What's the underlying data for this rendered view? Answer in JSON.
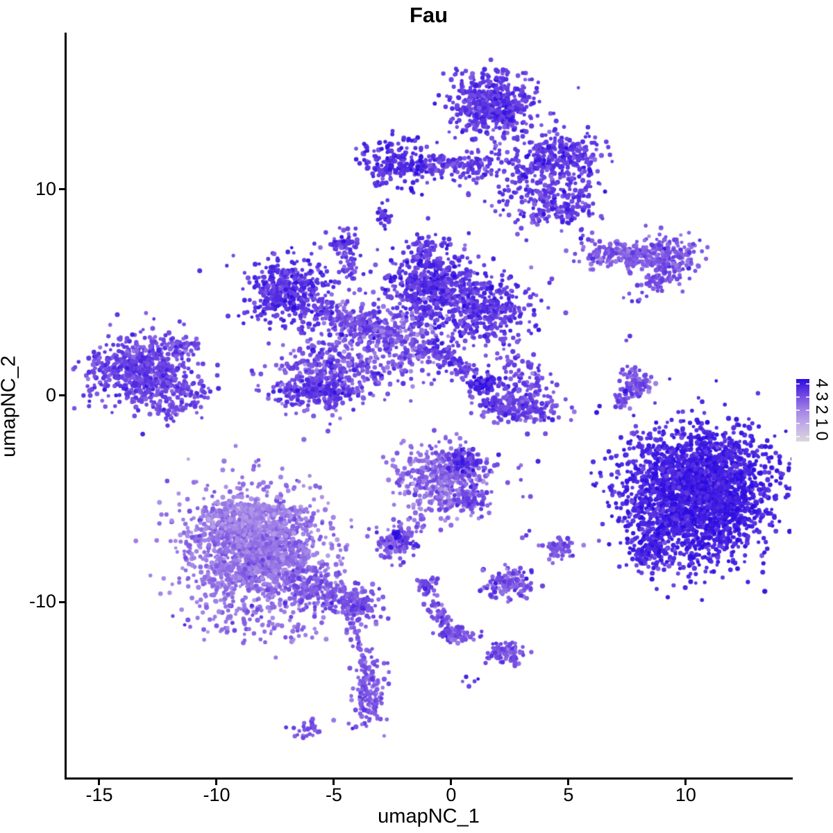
{
  "chart_data": {
    "type": "scatter",
    "title": "Fau",
    "xlabel": "umapNC_1",
    "ylabel": "umapNC_2",
    "xlim": [
      -16.42,
      14.5
    ],
    "ylim": [
      -18.51,
      17.6
    ],
    "grid": false,
    "x_ticks": [
      {
        "v": -15,
        "label": "-15"
      },
      {
        "v": -10,
        "label": "-10"
      },
      {
        "v": -5,
        "label": "-5"
      },
      {
        "v": 0,
        "label": "0"
      },
      {
        "v": 5,
        "label": "5"
      },
      {
        "v": 10,
        "label": "10"
      }
    ],
    "y_ticks": [
      {
        "v": 10,
        "label": "10"
      },
      {
        "v": 0,
        "label": "0"
      },
      {
        "v": -10,
        "label": "-10"
      }
    ],
    "colorbar": {
      "tick_labels": [
        "4",
        "3",
        "2",
        "1",
        "0"
      ],
      "stops_low_to_high": [
        "#d9d6d9",
        "#c3b0e8",
        "#a284e6",
        "#6f45e2",
        "#2c0ce0"
      ],
      "position": "right"
    },
    "point_style": {
      "radius_min": 2.4,
      "radius_max": 3.7,
      "alpha": 0.95
    },
    "clusters": [
      {
        "c": "top-main-head",
        "t": "g",
        "x": 1.78,
        "y": 14.13,
        "sx": 0.85,
        "sy": 0.75,
        "n": 550,
        "e": 3.3
      },
      {
        "c": "top-main-bridge",
        "t": "g",
        "x": 2.51,
        "y": 10.94,
        "sx": 1.15,
        "sy": 0.95,
        "n": 130,
        "e": 3.2
      },
      {
        "c": "top-main-right-wing",
        "t": "g",
        "x": 4.59,
        "y": 11.61,
        "sx": 0.85,
        "sy": 0.55,
        "n": 260,
        "e": 3.3
      },
      {
        "c": "top-main-lower-arm",
        "t": "g",
        "x": 4.44,
        "y": 9.42,
        "sx": 0.95,
        "sy": 0.62,
        "n": 230,
        "e": 3.2
      },
      {
        "c": "top-left-arm",
        "t": "s",
        "x1": -1.48,
        "y1": 11.1,
        "x2": 1.48,
        "y2": 11.27,
        "w": 0.28,
        "n": 130,
        "e": 3.2
      },
      {
        "c": "top-left-blob",
        "t": "g",
        "x": -2.31,
        "y": 11.27,
        "sx": 0.72,
        "sy": 0.58,
        "n": 200,
        "e": 3.5
      },
      {
        "c": "top-left-small",
        "t": "g",
        "x": -2.81,
        "y": 8.68,
        "sx": 0.18,
        "sy": 0.28,
        "n": 22,
        "e": 3.4
      },
      {
        "c": "top-strays",
        "t": "g",
        "x": 5.47,
        "y": 7.57,
        "sx": 0.38,
        "sy": 0.38,
        "n": 6,
        "e": 3.0
      },
      {
        "c": "mid-upper-left",
        "t": "g",
        "x": -6.86,
        "y": 5.05,
        "sx": 0.8,
        "sy": 0.8,
        "n": 430,
        "e": 3.4
      },
      {
        "c": "mid-ul-arm",
        "t": "s",
        "x1": -5.77,
        "y1": 4.21,
        "x2": -3.11,
        "y2": 3.03,
        "w": 0.35,
        "n": 170,
        "e": 3.0
      },
      {
        "c": "mid-top-blob",
        "t": "g",
        "x": -0.83,
        "y": 5.45,
        "sx": 0.95,
        "sy": 0.9,
        "n": 520,
        "e": 3.4
      },
      {
        "c": "mid-top-tip",
        "t": "s",
        "x1": -1.33,
        "y1": 7.74,
        "x2": -1.04,
        "y2": 6.56,
        "w": 0.22,
        "n": 35,
        "e": 3.2
      },
      {
        "c": "mid-right-limb",
        "t": "g",
        "x": 1.48,
        "y": 4.1,
        "sx": 0.95,
        "sy": 0.72,
        "n": 380,
        "e": 3.3
      },
      {
        "c": "mid-center",
        "t": "g",
        "x": -2.51,
        "y": 2.69,
        "sx": 1.05,
        "sy": 0.88,
        "n": 370,
        "e": 2.8,
        "es": 0.5
      },
      {
        "c": "mid-lower-left",
        "t": "g",
        "x": -5.38,
        "y": 0.94,
        "sx": 1.15,
        "sy": 0.82,
        "n": 430,
        "e": 2.9,
        "es": 0.45
      },
      {
        "c": "mid-ll-dark-edge",
        "t": "g",
        "x": -5.77,
        "y": 0.17,
        "sx": 0.85,
        "sy": 0.28,
        "n": 140,
        "e": 3.3
      },
      {
        "c": "mid-lr-strand",
        "t": "s",
        "x1": -1.04,
        "y1": 2.52,
        "x2": 1.48,
        "y2": 0.44,
        "w": 0.28,
        "n": 130,
        "e": 3.2
      },
      {
        "c": "mid-lr-tip",
        "t": "g",
        "x": 1.39,
        "y": 0.57,
        "sx": 0.22,
        "sy": 0.18,
        "n": 45,
        "e": 3.9
      },
      {
        "c": "mid-small-top-blob",
        "t": "g",
        "x": -4.59,
        "y": 7.4,
        "sx": 0.32,
        "sy": 0.28,
        "n": 55,
        "e": 3.3
      },
      {
        "c": "mid-top-link",
        "t": "s",
        "x1": -4.44,
        "y1": 6.9,
        "x2": -4.29,
        "y2": 5.55,
        "w": 0.2,
        "n": 30,
        "e": 3.1
      },
      {
        "c": "mid-halo",
        "t": "g",
        "x": -2.66,
        "y": 3.7,
        "sx": 2.1,
        "sy": 1.55,
        "n": 70,
        "e": 2.9
      },
      {
        "c": "left-main",
        "t": "g",
        "x": -13.17,
        "y": 1.28,
        "sx": 1.05,
        "sy": 0.82,
        "n": 640,
        "e": 3.1
      },
      {
        "c": "left-point",
        "t": "s",
        "x1": -11.69,
        "y1": 0.34,
        "x2": -10.71,
        "y2": 0.0,
        "w": 0.3,
        "n": 60,
        "e": 3.0
      },
      {
        "c": "left-top-arm",
        "t": "s",
        "x1": -11.83,
        "y1": 2.52,
        "x2": -10.89,
        "y2": 2.36,
        "w": 0.22,
        "n": 40,
        "e": 2.9
      },
      {
        "c": "left-tail",
        "t": "g",
        "x": -11.83,
        "y": -0.67,
        "sx": 0.45,
        "sy": 0.32,
        "n": 55,
        "e": 3.0
      },
      {
        "c": "topright-band",
        "t": "g",
        "x": 7.54,
        "y": 6.8,
        "sx": 1.05,
        "sy": 0.32,
        "n": 210,
        "e": 2.7
      },
      {
        "c": "topright-wing",
        "t": "g",
        "x": 9.17,
        "y": 6.66,
        "sx": 0.75,
        "sy": 0.6,
        "n": 190,
        "e": 2.8
      },
      {
        "c": "topright-strand",
        "t": "s",
        "x1": 8.28,
        "y1": 5.21,
        "x2": 9.32,
        "y2": 5.89,
        "w": 0.2,
        "n": 30,
        "e": 3.0
      },
      {
        "c": "topright-dots",
        "t": "g",
        "x": 7.75,
        "y": 4.61,
        "sx": 0.28,
        "sy": 0.22,
        "n": 5,
        "e": 3.2
      },
      {
        "c": "right-strand-1",
        "t": "s",
        "x1": 7.75,
        "y1": 1.35,
        "x2": 7.25,
        "y2": -0.5,
        "w": 0.22,
        "n": 55,
        "e": 2.9
      },
      {
        "c": "right-strand-2",
        "t": "s",
        "x1": 8.14,
        "y1": 1.01,
        "x2": 7.93,
        "y2": 0.0,
        "w": 0.18,
        "n": 35,
        "e": 2.9
      },
      {
        "c": "right-strand-piece",
        "t": "g",
        "x": 8.22,
        "y": 0.5,
        "sx": 0.22,
        "sy": 0.28,
        "n": 25,
        "e": 2.8
      },
      {
        "c": "right-strand-dots",
        "t": "g",
        "x": 7.75,
        "y": -2.19,
        "sx": 0.28,
        "sy": 0.38,
        "n": 6,
        "e": 3.1
      },
      {
        "c": "bottomright-main",
        "t": "g",
        "x": 10.65,
        "y": -4.71,
        "sx": 1.5,
        "sy": 1.55,
        "n": 2400,
        "e": 3.7,
        "es": 0.28
      },
      {
        "c": "bottomright-halo-ul",
        "t": "g",
        "x": 8.43,
        "y": -2.86,
        "sx": 0.65,
        "sy": 0.65,
        "n": 45,
        "e": 3.4
      },
      {
        "c": "bottomright-halo-l",
        "t": "g",
        "x": 7.99,
        "y": -5.38,
        "sx": 0.45,
        "sy": 0.75,
        "n": 35,
        "e": 3.4
      },
      {
        "c": "bottomright-bl-lobe",
        "t": "g",
        "x": 8.58,
        "y": -7.4,
        "sx": 0.55,
        "sy": 0.5,
        "n": 130,
        "e": 3.6
      },
      {
        "c": "center-bottom-main",
        "t": "g",
        "x": -0.38,
        "y": -3.97,
        "sx": 0.9,
        "sy": 0.82,
        "n": 500,
        "e": 2.5,
        "es": 0.42
      },
      {
        "c": "center-bottom-dark-patch",
        "t": "g",
        "x": 0.53,
        "y": -3.1,
        "sx": 0.33,
        "sy": 0.28,
        "n": 85,
        "e": 3.5
      },
      {
        "c": "center-bottom-edge",
        "t": "g",
        "x": 0.89,
        "y": -4.88,
        "sx": 0.4,
        "sy": 0.33,
        "n": 65,
        "e": 3.0
      },
      {
        "c": "center-bottom-tail",
        "t": "s",
        "x1": -1.18,
        "y1": -5.72,
        "x2": -2.31,
        "y2": -7.47,
        "w": 0.2,
        "n": 35,
        "e": 2.8
      },
      {
        "c": "center-tail-blob",
        "t": "g",
        "x": -2.37,
        "y": -7.07,
        "sx": 0.42,
        "sy": 0.4,
        "n": 110,
        "e": 2.8,
        "es": 0.5
      },
      {
        "c": "center-tail-dark-dot",
        "t": "g",
        "x": -2.31,
        "y": -6.8,
        "sx": 0.1,
        "sy": 0.1,
        "n": 10,
        "e": 3.9
      },
      {
        "c": "center-stray",
        "t": "g",
        "x": 3.11,
        "y": -6.8,
        "sx": 0.15,
        "sy": 0.12,
        "n": 3,
        "e": 3.0
      },
      {
        "c": "bottomleft-main",
        "t": "g",
        "x": -8.34,
        "y": -7.57,
        "sx": 1.45,
        "sy": 1.45,
        "n": 1700,
        "e": 2.3,
        "es": 0.35
      },
      {
        "c": "bottomleft-light-top",
        "t": "g",
        "x": -8.58,
        "y": -5.89,
        "sx": 0.85,
        "sy": 0.5,
        "n": 230,
        "e": 1.95
      },
      {
        "c": "bottomleft-tail",
        "t": "s",
        "x1": -6.51,
        "y1": -9.08,
        "x2": -3.85,
        "y2": -10.16,
        "w": 0.5,
        "n": 280,
        "e": 2.75
      },
      {
        "c": "bottomleft-tail-tip",
        "t": "g",
        "x": -3.85,
        "y": -10.26,
        "sx": 0.3,
        "sy": 0.3,
        "n": 60,
        "e": 2.9
      },
      {
        "c": "bottomleft-ragged-bottom",
        "t": "g",
        "x": -8.28,
        "y": -11.1,
        "sx": 1.4,
        "sy": 0.45,
        "n": 60,
        "e": 2.5
      },
      {
        "c": "chain-dotted-strand",
        "t": "s",
        "x1": -4.2,
        "y1": -11.04,
        "x2": -3.67,
        "y2": -13.19,
        "w": 0.15,
        "n": 22,
        "e": 2.8
      },
      {
        "c": "chain-elongated-blob",
        "t": "g",
        "x": -3.49,
        "y": -14.3,
        "sx": 0.33,
        "sy": 0.85,
        "n": 160,
        "e": 2.8
      },
      {
        "c": "chain-below-dots",
        "t": "g",
        "x": -4.29,
        "y": -15.88,
        "sx": 0.45,
        "sy": 0.12,
        "n": 4,
        "e": 2.8
      },
      {
        "c": "chain-bottom-blob",
        "t": "g",
        "x": -6.01,
        "y": -16.22,
        "sx": 0.33,
        "sy": 0.25,
        "n": 28,
        "e": 2.9
      },
      {
        "c": "ystrand-stem",
        "t": "s",
        "x1": -1.09,
        "y1": -9.25,
        "x2": -0.06,
        "y2": -11.61,
        "w": 0.22,
        "n": 65,
        "e": 2.8
      },
      {
        "c": "ystrand-head",
        "t": "g",
        "x": -1.04,
        "y": -9.18,
        "sx": 0.22,
        "sy": 0.18,
        "n": 28,
        "e": 2.9
      },
      {
        "c": "ystrand-knee",
        "t": "g",
        "x": 0.0,
        "y": -11.51,
        "sx": 0.28,
        "sy": 0.22,
        "n": 45,
        "e": 3.0
      },
      {
        "c": "ystrand-arm",
        "t": "s",
        "x1": 0.15,
        "y1": -11.61,
        "x2": 1.12,
        "y2": -11.85,
        "w": 0.18,
        "n": 25,
        "e": 2.8
      },
      {
        "c": "ystrand-far-blob",
        "t": "g",
        "x": 2.31,
        "y": -12.45,
        "sx": 0.42,
        "sy": 0.3,
        "n": 85,
        "e": 2.9
      },
      {
        "c": "ystrand-below-dots",
        "t": "g",
        "x": 0.65,
        "y": -13.8,
        "sx": 0.22,
        "sy": 0.12,
        "n": 5,
        "e": 3.2
      },
      {
        "c": "small-right-k",
        "t": "g",
        "x": 2.37,
        "y": -9.08,
        "sx": 0.5,
        "sy": 0.35,
        "n": 150,
        "e": 2.8,
        "es": 0.45
      },
      {
        "c": "small-right-l",
        "t": "g",
        "x": 4.62,
        "y": -7.37,
        "sx": 0.38,
        "sy": 0.25,
        "n": 65,
        "e": 2.9
      },
      {
        "c": "sparse-mid-right",
        "t": "g",
        "x": 3.11,
        "y": -4.37,
        "sx": 0.5,
        "sy": 0.5,
        "n": 6,
        "e": 3.0
      },
      {
        "c": "boat-top-scatter",
        "t": "g",
        "x": 2.81,
        "y": 0.84,
        "sx": 0.7,
        "sy": 0.55,
        "n": 100,
        "e": 3.1
      },
      {
        "c": "boat-crescent",
        "t": "g",
        "x": 2.96,
        "y": -0.5,
        "sx": 0.95,
        "sy": 0.4,
        "n": 220,
        "e": 3.0
      },
      {
        "c": "boat-left-tip",
        "t": "g",
        "x": 1.63,
        "y": -0.4,
        "sx": 0.15,
        "sy": 0.12,
        "n": 12,
        "e": 3.6
      },
      {
        "c": "boat-above-dots",
        "t": "g",
        "x": 2.6,
        "y": 2.19,
        "sx": 0.4,
        "sy": 0.4,
        "n": 8,
        "e": 3.0
      },
      {
        "c": "single-left",
        "t": "g",
        "x": -10.74,
        "y": 6.06,
        "sx": 0.05,
        "sy": 0.05,
        "n": 1,
        "e": 2.8
      },
      {
        "c": "pair-top-left",
        "t": "g",
        "x": -3.64,
        "y": 11.64,
        "sx": 0.15,
        "sy": 0.3,
        "n": 3,
        "e": 3.2
      },
      {
        "c": "pair-right",
        "t": "g",
        "x": 7.6,
        "y": 2.96,
        "sx": 0.15,
        "sy": 0.25,
        "n": 2,
        "e": 3.0
      },
      {
        "c": "single-mid-right",
        "t": "g",
        "x": 4.97,
        "y": 4.08,
        "sx": 0.05,
        "sy": 0.05,
        "n": 1,
        "e": 3.0
      }
    ]
  }
}
